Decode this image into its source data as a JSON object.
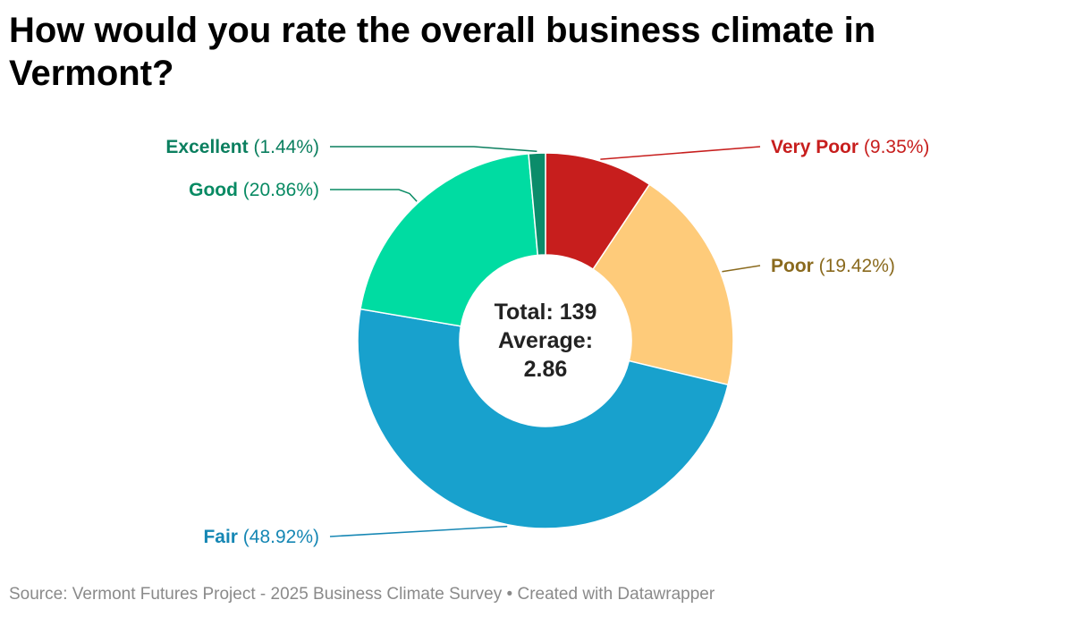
{
  "chart_data": {
    "type": "pie",
    "title": "How would you rate the overall business climate in Vermont?",
    "donut": true,
    "slices": [
      {
        "label": "Very Poor",
        "value_label": "(9.35%)",
        "value": 9.35,
        "color": "#c71e1d",
        "label_color": "#c71e1d"
      },
      {
        "label": "Poor",
        "value_label": "(19.42%)",
        "value": 19.42,
        "color": "#fecb7a",
        "label_color": "#8a6a1e"
      },
      {
        "label": "Fair",
        "value_label": "(48.92%)",
        "value": 48.92,
        "color": "#18a1cd",
        "label_color": "#1687b4"
      },
      {
        "label": "Good",
        "value_label": "(20.86%)",
        "value": 20.86,
        "color": "#00dca2",
        "label_color": "#088a63"
      },
      {
        "label": "Excellent",
        "value_label": "(1.44%)",
        "value": 1.44,
        "color": "#0b8c6a",
        "label_color": "#0b7f5f"
      }
    ],
    "center_text": [
      "Total: 139",
      "Average:",
      "2.86"
    ]
  },
  "footer": {
    "source": "Source: Vermont Futures Project - 2025 Business Climate Survey",
    "separator": " • ",
    "credit": "Created with Datawrapper"
  }
}
